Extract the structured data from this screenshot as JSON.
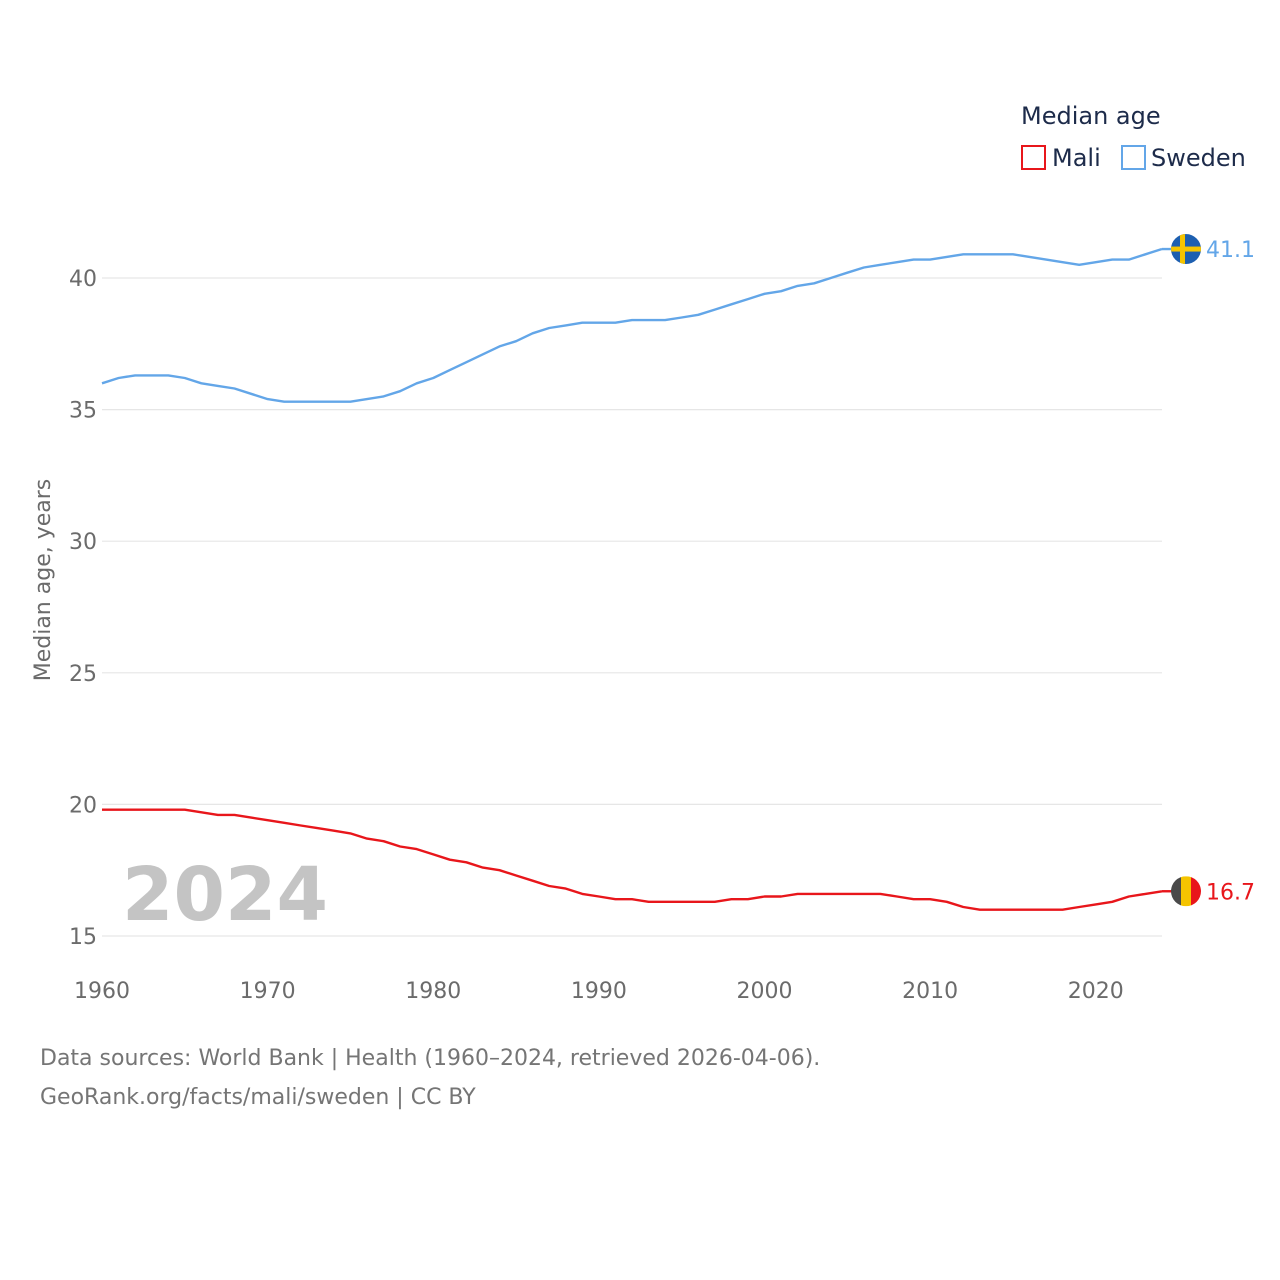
{
  "chart_data": {
    "type": "line",
    "legend_title": "Median age",
    "ylabel": "Median age, years",
    "xlim": [
      1960,
      2024
    ],
    "ylim": [
      15,
      43
    ],
    "yticks": [
      15,
      20,
      25,
      30,
      35,
      40
    ],
    "xticks": [
      1960,
      1970,
      1980,
      1990,
      2000,
      2010,
      2020
    ],
    "year_label": "2024",
    "x": [
      1960,
      1961,
      1962,
      1963,
      1964,
      1965,
      1966,
      1967,
      1968,
      1969,
      1970,
      1971,
      1972,
      1973,
      1974,
      1975,
      1976,
      1977,
      1978,
      1979,
      1980,
      1981,
      1982,
      1983,
      1984,
      1985,
      1986,
      1987,
      1988,
      1989,
      1990,
      1991,
      1992,
      1993,
      1994,
      1995,
      1996,
      1997,
      1998,
      1999,
      2000,
      2001,
      2002,
      2003,
      2004,
      2005,
      2006,
      2007,
      2008,
      2009,
      2010,
      2011,
      2012,
      2013,
      2014,
      2015,
      2016,
      2017,
      2018,
      2019,
      2020,
      2021,
      2022,
      2023,
      2024
    ],
    "series": [
      {
        "name": "Mali",
        "color": "#e8161b",
        "end_label": "16.7",
        "values": [
          19.8,
          19.8,
          19.8,
          19.8,
          19.8,
          19.8,
          19.7,
          19.6,
          19.6,
          19.5,
          19.4,
          19.3,
          19.2,
          19.1,
          19.0,
          18.9,
          18.7,
          18.6,
          18.4,
          18.3,
          18.1,
          17.9,
          17.8,
          17.6,
          17.5,
          17.3,
          17.1,
          16.9,
          16.8,
          16.6,
          16.5,
          16.4,
          16.4,
          16.3,
          16.3,
          16.3,
          16.3,
          16.3,
          16.4,
          16.4,
          16.5,
          16.5,
          16.6,
          16.6,
          16.6,
          16.6,
          16.6,
          16.6,
          16.5,
          16.4,
          16.4,
          16.3,
          16.1,
          16.0,
          16.0,
          16.0,
          16.0,
          16.0,
          16.0,
          16.1,
          16.2,
          16.3,
          16.5,
          16.6,
          16.7
        ]
      },
      {
        "name": "Sweden",
        "color": "#63a6e8",
        "end_label": "41.1",
        "values": [
          36.0,
          36.2,
          36.3,
          36.3,
          36.3,
          36.2,
          36.0,
          35.9,
          35.8,
          35.6,
          35.4,
          35.3,
          35.3,
          35.3,
          35.3,
          35.3,
          35.4,
          35.5,
          35.7,
          36.0,
          36.2,
          36.5,
          36.8,
          37.1,
          37.4,
          37.6,
          37.9,
          38.1,
          38.2,
          38.3,
          38.3,
          38.3,
          38.4,
          38.4,
          38.4,
          38.5,
          38.6,
          38.8,
          39.0,
          39.2,
          39.4,
          39.5,
          39.7,
          39.8,
          40.0,
          40.2,
          40.4,
          40.5,
          40.6,
          40.7,
          40.7,
          40.8,
          40.9,
          40.9,
          40.9,
          40.9,
          40.8,
          40.7,
          40.6,
          40.5,
          40.6,
          40.7,
          40.7,
          40.9,
          41.1
        ]
      }
    ]
  },
  "footer": {
    "line1": "Data sources: World Bank | Health (1960–2024, retrieved 2026-04-06).",
    "line2": "GeoRank.org/facts/mali/sweden | CC BY"
  },
  "flags": {
    "mali_colors": [
      "#4a4a4a",
      "#f5c400",
      "#e8161b"
    ],
    "sweden_colors": [
      "#1d5fb0",
      "#f5c400"
    ]
  }
}
